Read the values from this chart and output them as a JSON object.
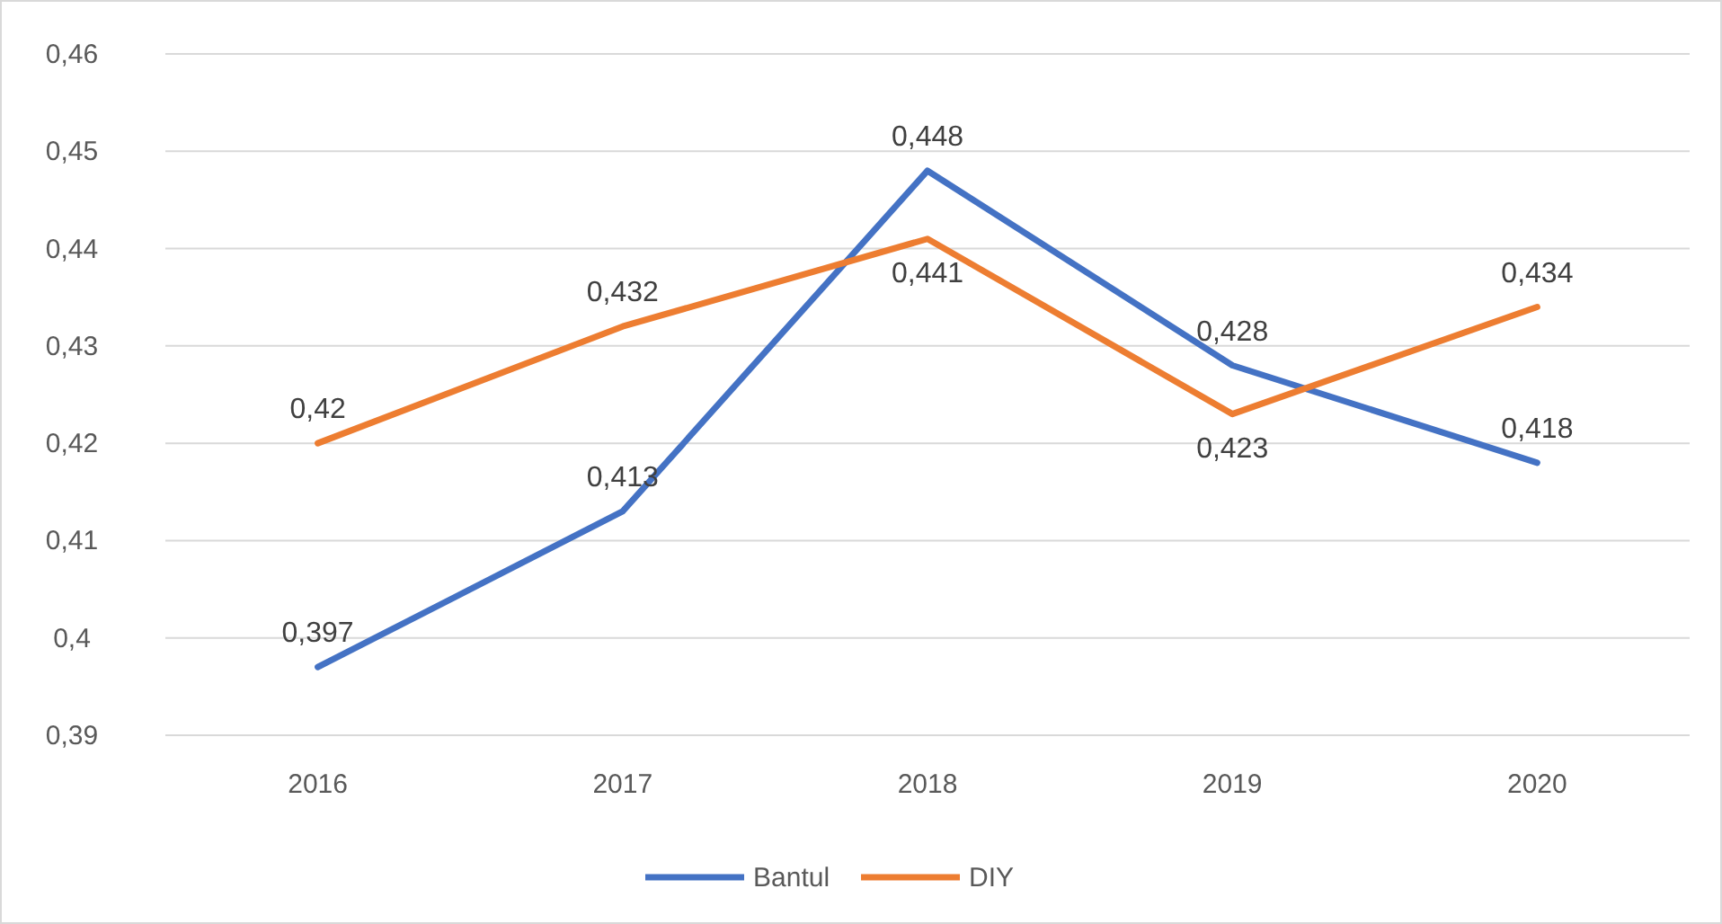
{
  "chart_data": {
    "type": "line",
    "categories": [
      "2016",
      "2017",
      "2018",
      "2019",
      "2020"
    ],
    "series": [
      {
        "name": "Bantul",
        "color": "#4472c4",
        "values": [
          0.397,
          0.413,
          0.448,
          0.428,
          0.418
        ],
        "value_labels": [
          "0,397",
          "0,413",
          "0,448",
          "0,428",
          "0,418"
        ]
      },
      {
        "name": "DIY",
        "color": "#ed7d31",
        "values": [
          0.42,
          0.432,
          0.441,
          0.423,
          0.434
        ],
        "value_labels": [
          "0,42",
          "0,432",
          "0,441",
          "0,423",
          "0,434"
        ]
      }
    ],
    "ylim": [
      0.39,
      0.46
    ],
    "yticks": [
      {
        "value": 0.39,
        "label": "0,39"
      },
      {
        "value": 0.4,
        "label": "0,4"
      },
      {
        "value": 0.41,
        "label": "0,41"
      },
      {
        "value": 0.42,
        "label": "0,42"
      },
      {
        "value": 0.43,
        "label": "0,43"
      },
      {
        "value": 0.44,
        "label": "0,44"
      },
      {
        "value": 0.45,
        "label": "0,45"
      },
      {
        "value": 0.46,
        "label": "0,46"
      }
    ],
    "grid": "y",
    "legend": "bottom",
    "marker": "none",
    "line_style": "solid"
  }
}
